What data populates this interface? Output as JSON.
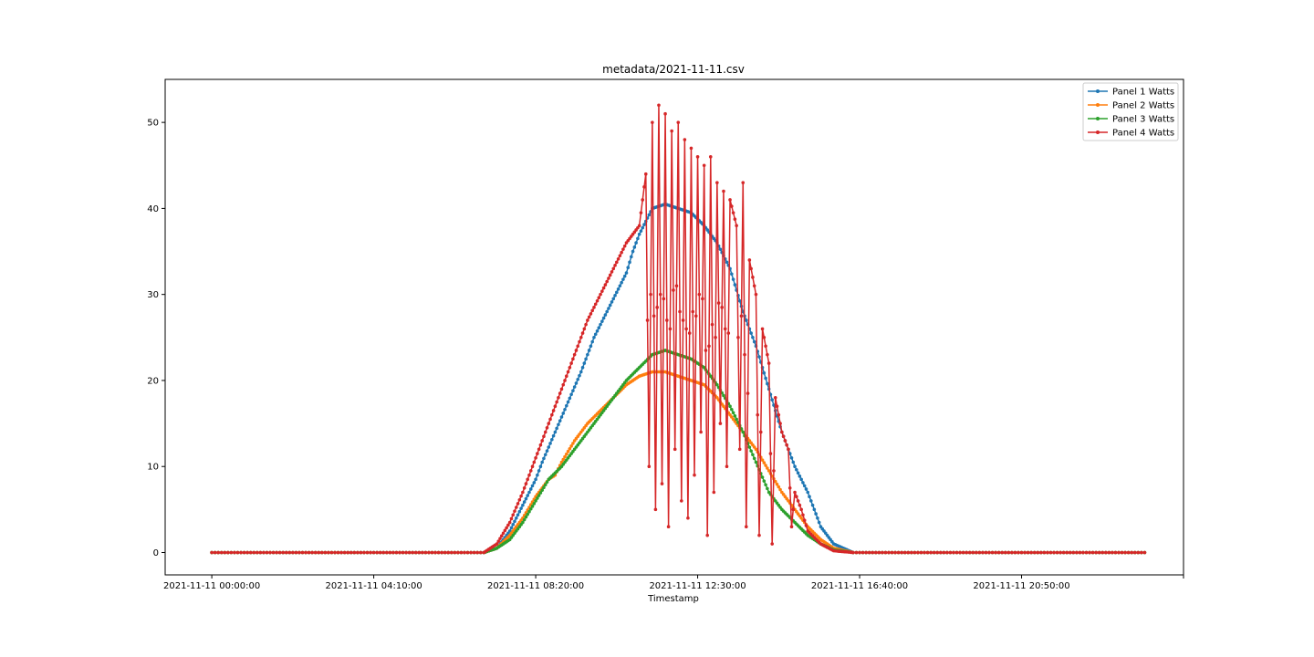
{
  "chart_data": {
    "type": "line",
    "title": "metadata/2021-11-11.csv",
    "xlabel": "Timestamp",
    "ylabel": "",
    "x_tick_labels": [
      "2021-11-11 00:00:00",
      "2021-11-11 04:10:00",
      "2021-11-11 08:20:00",
      "2021-11-11 12:30:00",
      "2021-11-11 16:40:00",
      "2021-11-11 20:50:00"
    ],
    "x_tick_minutes": [
      0,
      250,
      500,
      750,
      1000,
      1250
    ],
    "y_ticks": [
      0,
      10,
      20,
      30,
      40,
      50
    ],
    "ylim": [
      -2.6,
      55
    ],
    "xlim_minutes": [
      -72,
      1500
    ],
    "x_data_range_minutes": [
      0,
      1440
    ],
    "legend_position": "top-right",
    "grid": false,
    "markers": true,
    "series": [
      {
        "name": "Panel 1 Watts",
        "color": "#1f77b4",
        "points": [
          [
            0,
            0
          ],
          [
            420,
            0
          ],
          [
            440,
            0.5
          ],
          [
            460,
            2.5
          ],
          [
            480,
            5.5
          ],
          [
            500,
            8.5
          ],
          [
            510,
            10.5
          ],
          [
            530,
            14
          ],
          [
            550,
            17.5
          ],
          [
            570,
            21
          ],
          [
            590,
            25
          ],
          [
            610,
            28
          ],
          [
            620,
            29.5
          ],
          [
            630,
            31
          ],
          [
            640,
            32.5
          ],
          [
            650,
            35
          ],
          [
            660,
            37
          ],
          [
            670,
            38.5
          ],
          [
            680,
            40
          ],
          [
            700,
            40.5
          ],
          [
            720,
            40
          ],
          [
            740,
            39.5
          ],
          [
            760,
            38
          ],
          [
            780,
            36
          ],
          [
            800,
            33
          ],
          [
            820,
            28
          ],
          [
            840,
            24
          ],
          [
            860,
            19
          ],
          [
            880,
            14
          ],
          [
            900,
            10
          ],
          [
            920,
            7
          ],
          [
            940,
            3
          ],
          [
            960,
            1
          ],
          [
            990,
            0
          ],
          [
            1440,
            0
          ]
        ]
      },
      {
        "name": "Panel 2 Watts",
        "color": "#ff7f0e",
        "points": [
          [
            0,
            0
          ],
          [
            420,
            0
          ],
          [
            440,
            0.5
          ],
          [
            460,
            2
          ],
          [
            480,
            4
          ],
          [
            500,
            6.5
          ],
          [
            520,
            8.5
          ],
          [
            530,
            9
          ],
          [
            540,
            10.5
          ],
          [
            560,
            13
          ],
          [
            580,
            15
          ],
          [
            600,
            16.5
          ],
          [
            620,
            18
          ],
          [
            640,
            19.5
          ],
          [
            660,
            20.5
          ],
          [
            680,
            21
          ],
          [
            700,
            21
          ],
          [
            720,
            20.5
          ],
          [
            740,
            20
          ],
          [
            760,
            19.5
          ],
          [
            780,
            18
          ],
          [
            800,
            16
          ],
          [
            820,
            14
          ],
          [
            840,
            12
          ],
          [
            860,
            9.5
          ],
          [
            880,
            7
          ],
          [
            900,
            5
          ],
          [
            920,
            3
          ],
          [
            940,
            1.5
          ],
          [
            960,
            0.5
          ],
          [
            990,
            0
          ],
          [
            1440,
            0
          ]
        ]
      },
      {
        "name": "Panel 3 Watts",
        "color": "#2ca02c",
        "points": [
          [
            0,
            0
          ],
          [
            420,
            0
          ],
          [
            440,
            0.5
          ],
          [
            460,
            1.5
          ],
          [
            480,
            3.5
          ],
          [
            500,
            6
          ],
          [
            520,
            8.5
          ],
          [
            540,
            10
          ],
          [
            560,
            12
          ],
          [
            580,
            14
          ],
          [
            600,
            16
          ],
          [
            620,
            18
          ],
          [
            640,
            20
          ],
          [
            660,
            21.5
          ],
          [
            680,
            23
          ],
          [
            700,
            23.5
          ],
          [
            720,
            23
          ],
          [
            740,
            22.5
          ],
          [
            760,
            21.5
          ],
          [
            780,
            19.5
          ],
          [
            800,
            17
          ],
          [
            820,
            14
          ],
          [
            840,
            10.5
          ],
          [
            860,
            7
          ],
          [
            880,
            5
          ],
          [
            900,
            3.5
          ],
          [
            920,
            2
          ],
          [
            940,
            1
          ],
          [
            960,
            0.3
          ],
          [
            990,
            0
          ],
          [
            1440,
            0
          ]
        ]
      },
      {
        "name": "Panel 4 Watts",
        "color": "#d62728",
        "points": [
          [
            0,
            0
          ],
          [
            420,
            0
          ],
          [
            440,
            1
          ],
          [
            460,
            3.5
          ],
          [
            480,
            7
          ],
          [
            500,
            11
          ],
          [
            520,
            15
          ],
          [
            540,
            19
          ],
          [
            560,
            23
          ],
          [
            580,
            27
          ],
          [
            600,
            30
          ],
          [
            620,
            33
          ],
          [
            640,
            36
          ],
          [
            650,
            37
          ],
          [
            660,
            38
          ],
          [
            670,
            44
          ],
          [
            675,
            10
          ],
          [
            680,
            50
          ],
          [
            685,
            5
          ],
          [
            690,
            52
          ],
          [
            695,
            8
          ],
          [
            700,
            51
          ],
          [
            705,
            3
          ],
          [
            710,
            49
          ],
          [
            715,
            12
          ],
          [
            720,
            50
          ],
          [
            725,
            6
          ],
          [
            730,
            48
          ],
          [
            735,
            4
          ],
          [
            740,
            47
          ],
          [
            745,
            9
          ],
          [
            750,
            46
          ],
          [
            755,
            14
          ],
          [
            760,
            45
          ],
          [
            765,
            2
          ],
          [
            770,
            46
          ],
          [
            775,
            7
          ],
          [
            780,
            43
          ],
          [
            785,
            15
          ],
          [
            790,
            42
          ],
          [
            795,
            10
          ],
          [
            800,
            41
          ],
          [
            810,
            38
          ],
          [
            815,
            12
          ],
          [
            820,
            43
          ],
          [
            825,
            3
          ],
          [
            830,
            34
          ],
          [
            840,
            30
          ],
          [
            845,
            2
          ],
          [
            850,
            26
          ],
          [
            860,
            22
          ],
          [
            865,
            1
          ],
          [
            870,
            18
          ],
          [
            880,
            14
          ],
          [
            890,
            12
          ],
          [
            895,
            3
          ],
          [
            900,
            7
          ],
          [
            910,
            5
          ],
          [
            920,
            2.5
          ],
          [
            940,
            1
          ],
          [
            960,
            0.2
          ],
          [
            990,
            0
          ],
          [
            1440,
            0
          ]
        ]
      }
    ]
  }
}
